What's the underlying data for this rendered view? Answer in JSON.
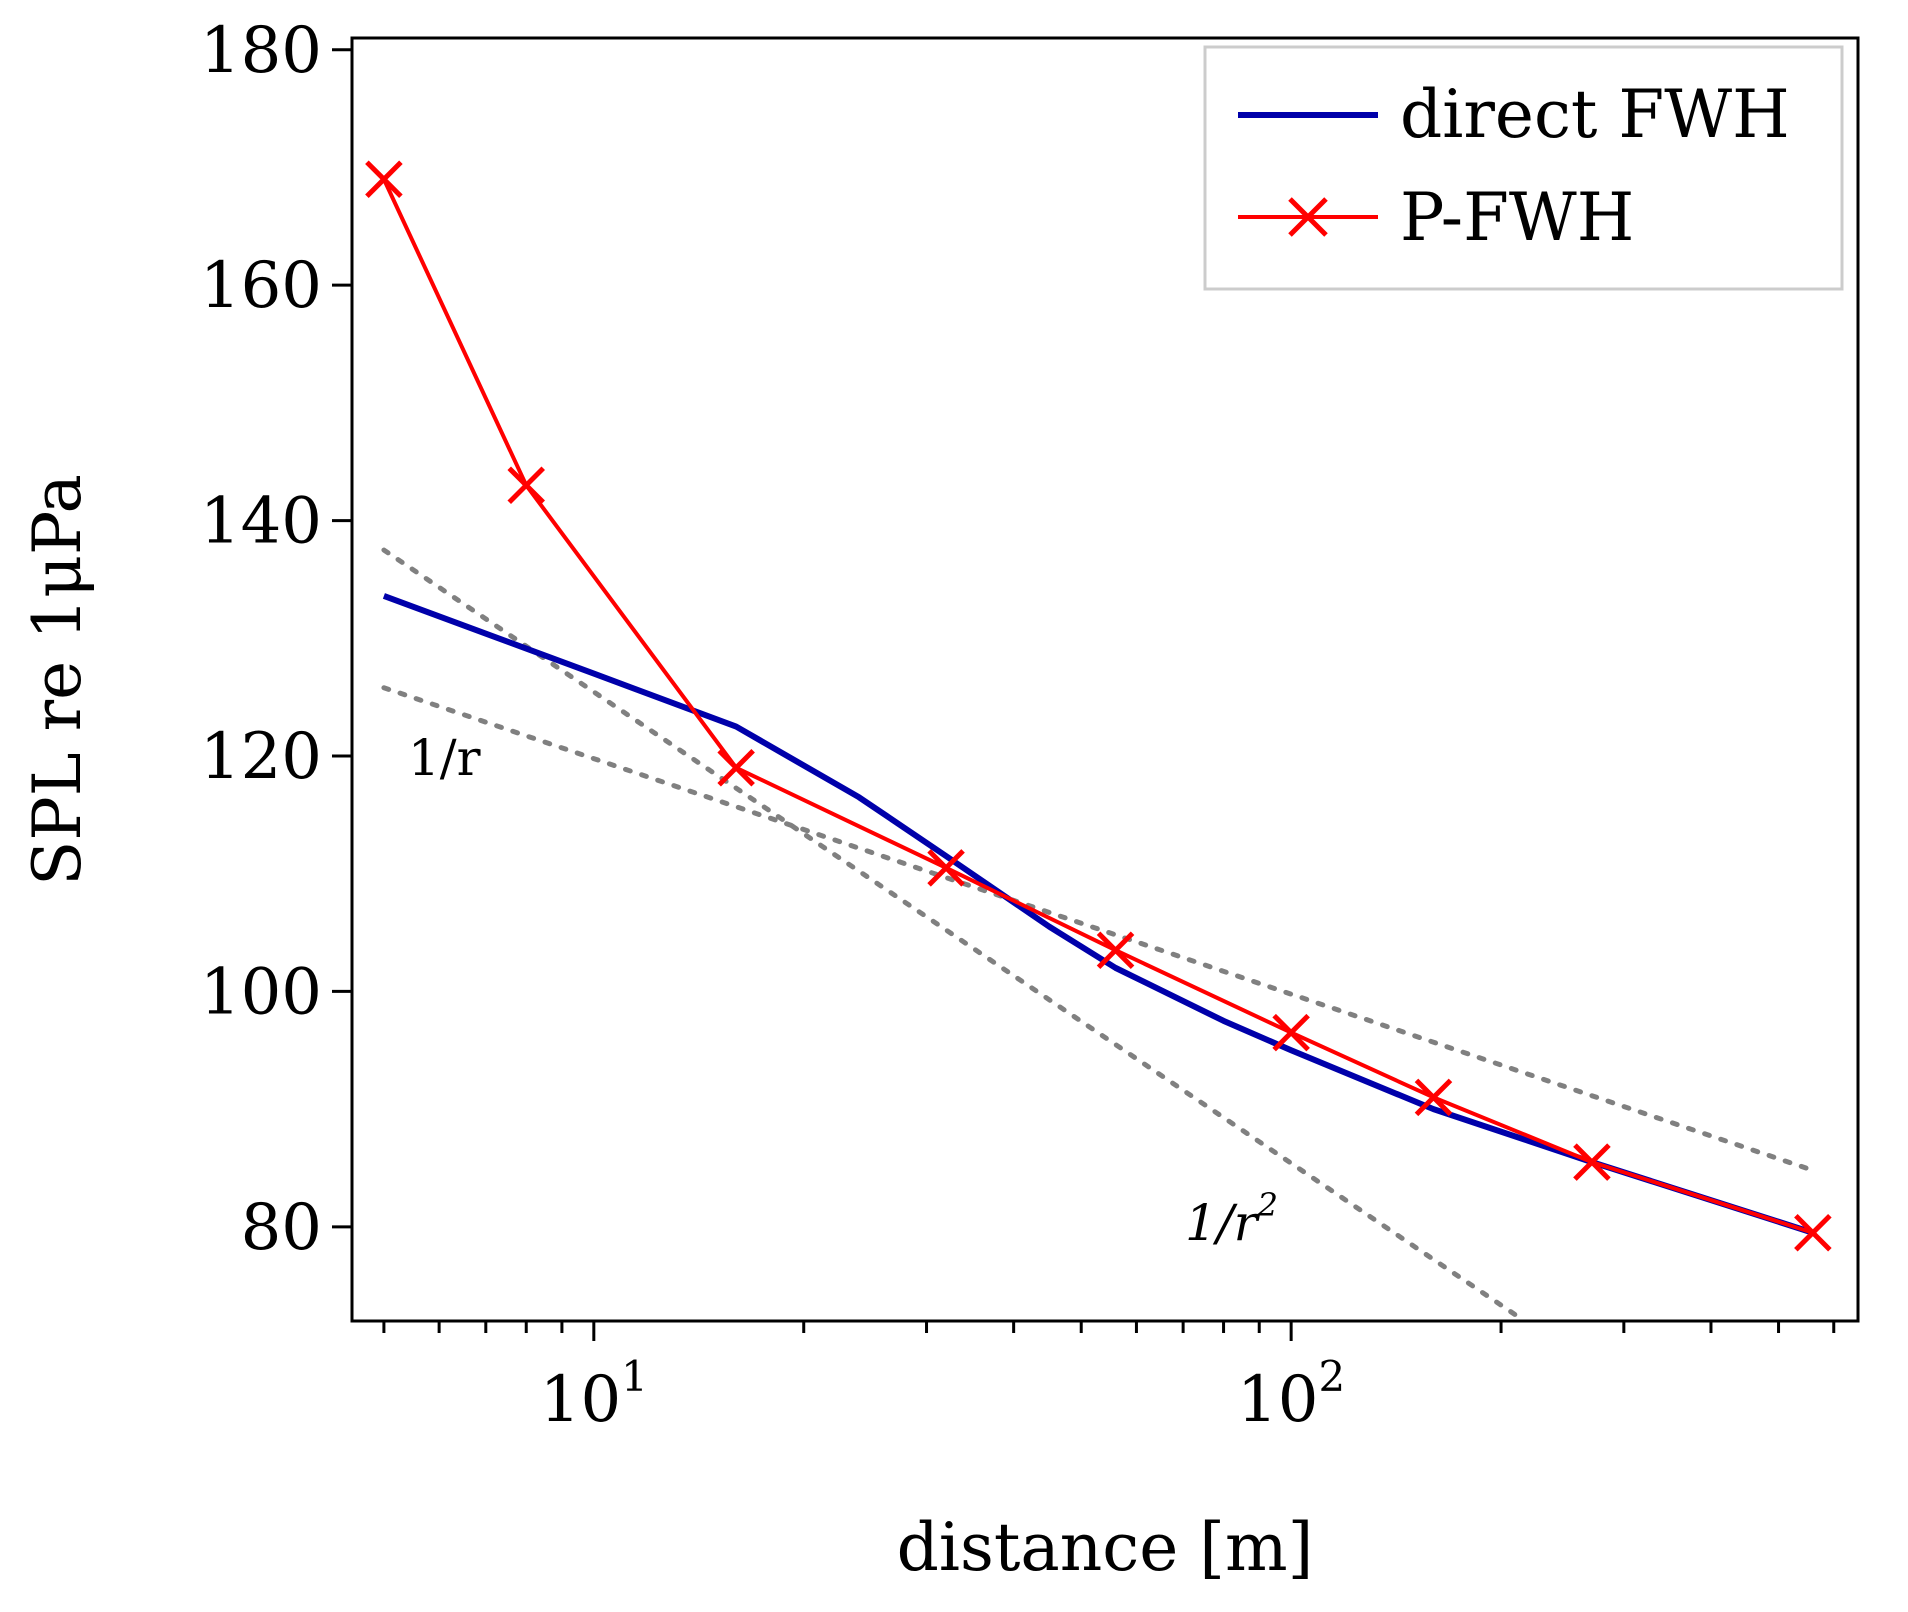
{
  "chart_data": {
    "type": "line",
    "title": "",
    "xlabel": "distance [m]",
    "ylabel": "SPL re 1μPa",
    "xscale": "log",
    "xlim": [
      4.5,
      650
    ],
    "ylim": [
      72,
      181
    ],
    "yticks": [
      80,
      100,
      120,
      140,
      160,
      180
    ],
    "xtick_labels": [
      {
        "value": 10,
        "base": "10",
        "exp": "1"
      },
      {
        "value": 100,
        "base": "10",
        "exp": "2"
      }
    ],
    "legend_position": "top-right",
    "series": [
      {
        "name": "direct FWH",
        "color": "#0000aa",
        "marker": "none",
        "x": [
          5,
          10,
          16,
          24,
          32,
          45,
          56,
          80,
          100,
          160,
          270,
          560
        ],
        "y": [
          133.6,
          127,
          122.5,
          116.5,
          111.5,
          105.5,
          102,
          97.5,
          95,
          90,
          85.5,
          79.5
        ]
      },
      {
        "name": "P-FWH",
        "color": "#ff0000",
        "marker": "x",
        "x": [
          5,
          8,
          16,
          32,
          56,
          100,
          160,
          270,
          560
        ],
        "y": [
          169,
          143,
          119,
          110.5,
          103.5,
          96.5,
          91,
          85.5,
          79.5
        ]
      }
    ],
    "reference_lines": [
      {
        "label_base": "1/r",
        "label_sup": "",
        "color": "#808080",
        "x": [
          5,
          560
        ],
        "y": [
          125.8,
          84.8
        ]
      },
      {
        "label_base": "1/r",
        "label_sup": "2",
        "color": "#808080",
        "x": [
          5,
          210
        ],
        "y": [
          137.5,
          72.5
        ]
      }
    ]
  }
}
